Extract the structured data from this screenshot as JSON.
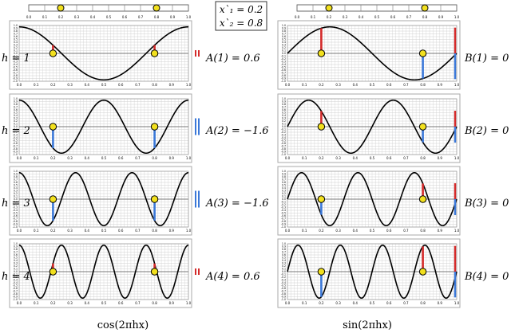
{
  "points": {
    "label_1": "x`₁ = 0.2",
    "label_2": "x`₂ = 0.8",
    "values": [
      0.2,
      0.8
    ]
  },
  "ticks": [
    "0.0",
    "0.1",
    "0.2",
    "0.3",
    "0.4",
    "0.5",
    "0.6",
    "0.7",
    "0.8",
    "0.9",
    "1.0"
  ],
  "ytick_labels": [
    "1.0",
    "0.9",
    "0.8",
    "0.7",
    "0.6",
    "0.5",
    "0.4",
    "0.3",
    "0.2",
    "0.1",
    "0.0",
    "-0.1",
    "-0.2",
    "-0.3",
    "-0.4",
    "-0.5",
    "-0.6",
    "-0.7",
    "-0.8",
    "-0.9",
    "-1.0"
  ],
  "rows": [
    {
      "h_label": "h = 1",
      "a_label": "A(1) = 0.6",
      "b_label": "B(1) = 0"
    },
    {
      "h_label": "h = 2",
      "a_label": "A(2) = −1.6",
      "b_label": "B(2) = 0"
    },
    {
      "h_label": "h = 3",
      "a_label": "A(3) = −1.6",
      "b_label": "B(3) = 0"
    },
    {
      "h_label": "h = 4",
      "a_label": "A(4) = 0.6",
      "b_label": "B(4) = 0"
    }
  ],
  "captions": {
    "cos": "cos(2πhx)",
    "sin": "sin(2πhx)"
  },
  "colors": {
    "positive": "#d42a2a",
    "negative": "#3b78d8",
    "point": "#f2e01e",
    "grid": "#cfcfcf",
    "curve": "#000000"
  }
}
